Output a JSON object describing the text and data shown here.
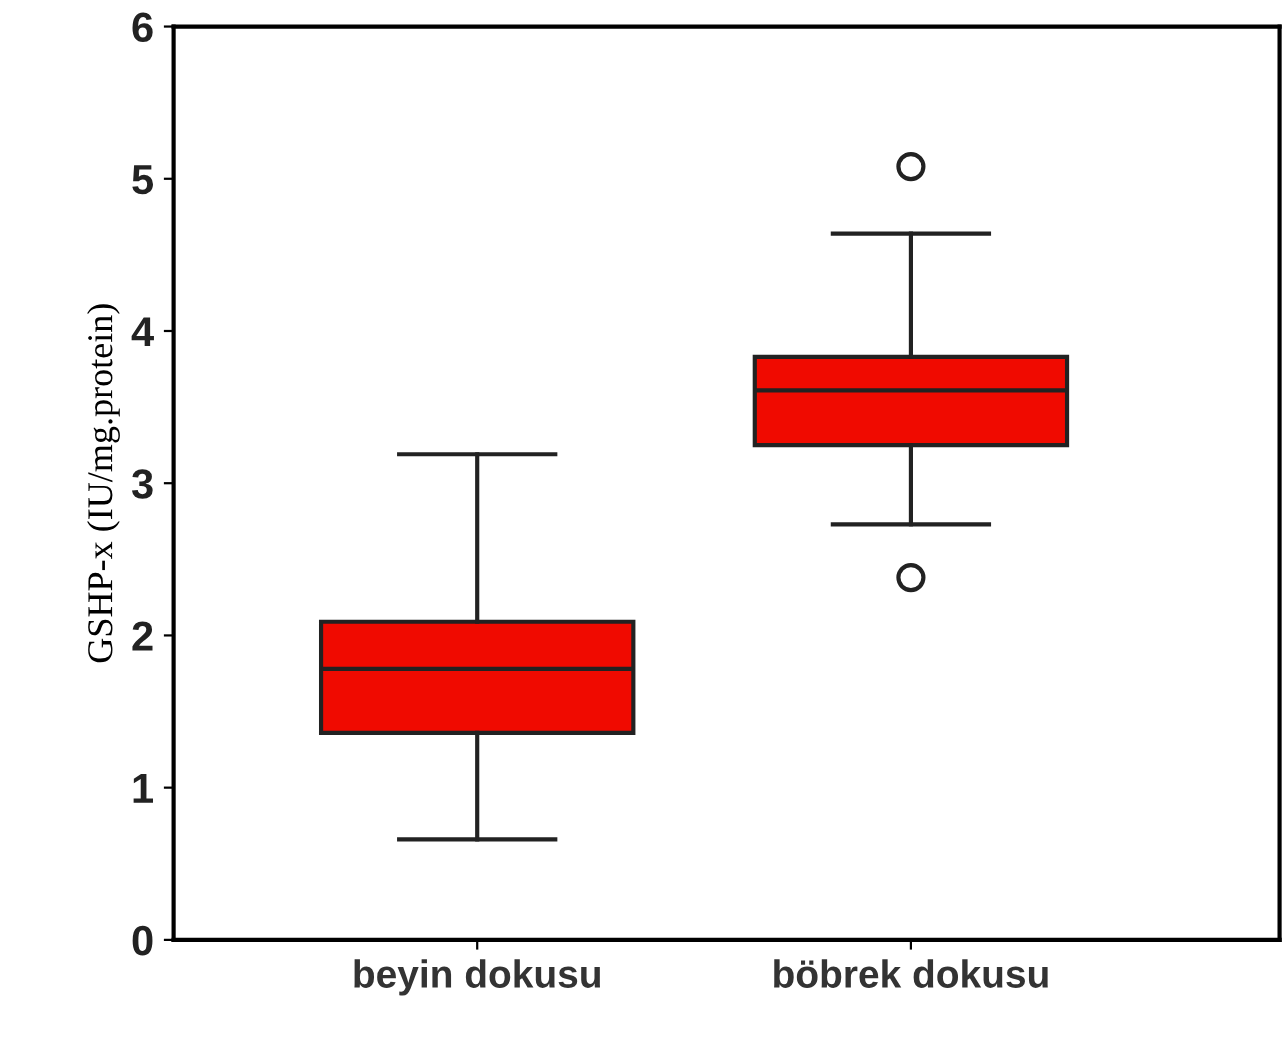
{
  "chart_data": {
    "type": "box",
    "ylabel": "GSHP-x (IU/mg.protein)",
    "categories": [
      "beyin dokusu",
      "böbrek dokusu"
    ],
    "color": "#f00a00",
    "boxes": [
      {
        "low": 0.66,
        "q1": 1.36,
        "median": 1.78,
        "q3": 2.09,
        "high": 3.19
      },
      {
        "low": 2.73,
        "q1": 3.25,
        "median": 3.61,
        "q3": 3.83,
        "high": 4.64,
        "outliers": [
          5.08,
          2.38
        ]
      }
    ],
    "ylim": [
      0,
      6
    ],
    "yticks": [
      0,
      1,
      2,
      3,
      4,
      5,
      6
    ],
    "grid": false
  }
}
